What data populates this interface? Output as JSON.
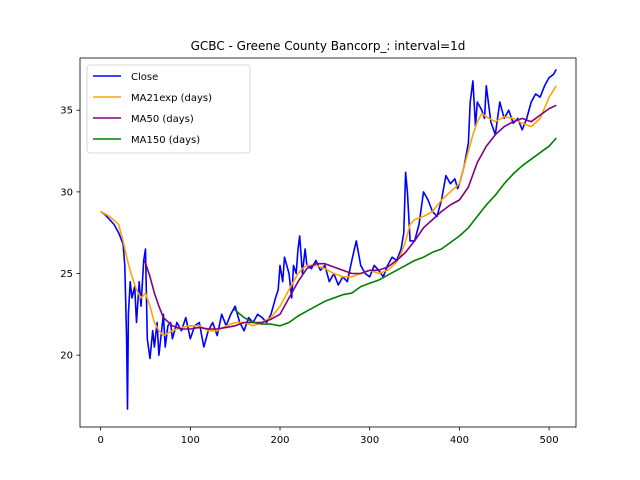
{
  "chart_data": {
    "type": "line",
    "title": "GCBC - Greene County Bancorp_: interval=1d",
    "xlabel": "",
    "ylabel": "",
    "xlim": [
      -23,
      530
    ],
    "ylim": [
      15.6,
      38.2
    ],
    "xticks": [
      0,
      100,
      200,
      300,
      400,
      500
    ],
    "yticks": [
      20,
      25,
      30,
      35
    ],
    "grid": false,
    "legend_position": "upper-left",
    "series": [
      {
        "name": "Close",
        "color": "#0000ff",
        "x": [
          0,
          5,
          10,
          15,
          20,
          25,
          27,
          29,
          30,
          31,
          33,
          35,
          38,
          40,
          43,
          45,
          48,
          50,
          52,
          55,
          58,
          60,
          63,
          65,
          68,
          70,
          72,
          75,
          78,
          80,
          85,
          90,
          95,
          100,
          105,
          110,
          115,
          120,
          125,
          130,
          135,
          140,
          145,
          150,
          155,
          160,
          165,
          170,
          175,
          180,
          185,
          190,
          195,
          198,
          200,
          203,
          205,
          210,
          213,
          215,
          218,
          220,
          222,
          225,
          228,
          230,
          235,
          240,
          245,
          250,
          255,
          260,
          265,
          270,
          275,
          280,
          285,
          290,
          295,
          300,
          305,
          310,
          315,
          320,
          325,
          330,
          335,
          338,
          340,
          342,
          345,
          350,
          355,
          360,
          365,
          370,
          375,
          380,
          385,
          390,
          395,
          398,
          400,
          405,
          410,
          412,
          415,
          418,
          420,
          425,
          428,
          430,
          435,
          440,
          445,
          450,
          455,
          460,
          465,
          470,
          475,
          480,
          485,
          490,
          495,
          500,
          505,
          508
        ],
        "y": [
          28.8,
          28.6,
          28.3,
          28.0,
          27.5,
          26.8,
          25.5,
          21.0,
          16.7,
          22.5,
          24.5,
          23.5,
          24.2,
          22.0,
          24.5,
          23.0,
          25.8,
          26.5,
          21.0,
          19.8,
          21.5,
          20.5,
          22.0,
          20.0,
          21.5,
          22.5,
          20.5,
          21.8,
          22.0,
          21.0,
          22.0,
          21.5,
          22.3,
          21.0,
          21.8,
          22.0,
          20.5,
          21.5,
          22.0,
          21.2,
          22.5,
          21.8,
          22.5,
          23.0,
          22.0,
          21.5,
          22.3,
          22.0,
          22.5,
          22.3,
          22.0,
          22.5,
          23.5,
          24.0,
          25.5,
          24.5,
          26.0,
          25.0,
          23.5,
          25.5,
          25.0,
          26.5,
          27.3,
          25.0,
          26.5,
          25.5,
          25.3,
          25.8,
          25.2,
          25.5,
          24.5,
          25.0,
          24.3,
          24.8,
          24.5,
          25.8,
          27.0,
          25.5,
          25.0,
          24.8,
          25.5,
          25.2,
          24.8,
          25.5,
          26.0,
          25.8,
          26.5,
          27.5,
          31.2,
          30.0,
          27.0,
          27.0,
          28.0,
          30.0,
          29.5,
          28.8,
          28.5,
          29.5,
          31.0,
          30.5,
          30.8,
          30.2,
          30.5,
          31.5,
          33.0,
          35.5,
          36.8,
          34.0,
          35.5,
          35.0,
          34.5,
          36.5,
          34.3,
          33.5,
          35.5,
          34.5,
          35.0,
          34.2,
          34.5,
          33.8,
          34.5,
          35.5,
          36.0,
          35.8,
          36.5,
          37.0,
          37.2,
          37.5
        ]
      },
      {
        "name": "MA21exp (days)",
        "color": "#ffa500",
        "x": [
          0,
          10,
          20,
          25,
          30,
          35,
          40,
          45,
          50,
          55,
          60,
          65,
          70,
          80,
          90,
          100,
          110,
          120,
          130,
          140,
          150,
          160,
          170,
          180,
          190,
          200,
          205,
          210,
          215,
          220,
          225,
          230,
          240,
          250,
          260,
          270,
          280,
          290,
          300,
          310,
          320,
          330,
          335,
          340,
          345,
          350,
          360,
          370,
          380,
          390,
          400,
          405,
          410,
          415,
          420,
          425,
          430,
          440,
          450,
          460,
          470,
          480,
          490,
          500,
          508
        ],
        "y": [
          28.8,
          28.5,
          28.0,
          27.0,
          25.8,
          24.8,
          24.0,
          23.5,
          23.8,
          23.0,
          22.0,
          21.5,
          21.2,
          21.5,
          21.7,
          21.8,
          21.8,
          21.5,
          21.5,
          21.8,
          22.0,
          22.0,
          21.8,
          22.0,
          22.3,
          23.0,
          23.5,
          24.0,
          24.5,
          25.0,
          25.3,
          25.5,
          25.5,
          25.3,
          25.0,
          24.8,
          24.8,
          25.0,
          25.2,
          25.0,
          25.2,
          25.7,
          26.2,
          27.0,
          28.0,
          28.3,
          28.5,
          28.8,
          29.5,
          30.0,
          30.5,
          31.5,
          32.5,
          33.5,
          34.3,
          34.8,
          34.6,
          34.3,
          34.6,
          34.5,
          34.2,
          34.0,
          34.5,
          35.8,
          36.5
        ]
      },
      {
        "name": "MA50 (days)",
        "color": "#800080",
        "x": [
          49,
          55,
          60,
          65,
          70,
          80,
          90,
          100,
          110,
          120,
          130,
          140,
          150,
          160,
          170,
          180,
          190,
          200,
          210,
          220,
          230,
          240,
          250,
          260,
          270,
          280,
          290,
          300,
          310,
          320,
          330,
          340,
          350,
          360,
          370,
          380,
          390,
          400,
          410,
          420,
          430,
          440,
          450,
          460,
          470,
          480,
          490,
          500,
          508
        ],
        "y": [
          25.8,
          24.8,
          23.8,
          23.0,
          22.3,
          21.8,
          21.6,
          21.6,
          21.7,
          21.6,
          21.6,
          21.7,
          21.8,
          22.0,
          22.0,
          22.0,
          22.2,
          22.5,
          23.5,
          24.5,
          25.3,
          25.6,
          25.6,
          25.4,
          25.2,
          25.0,
          25.0,
          25.2,
          25.2,
          25.4,
          25.8,
          26.3,
          27.0,
          27.8,
          28.3,
          28.8,
          29.2,
          29.5,
          30.3,
          31.8,
          32.8,
          33.5,
          34.0,
          34.3,
          34.5,
          34.3,
          34.7,
          35.1,
          35.3
        ]
      },
      {
        "name": "MA150 (days)",
        "color": "#008000",
        "x": [
          149,
          160,
          170,
          180,
          190,
          200,
          210,
          220,
          230,
          240,
          250,
          260,
          270,
          280,
          290,
          300,
          310,
          320,
          330,
          340,
          350,
          360,
          370,
          380,
          390,
          400,
          410,
          420,
          430,
          440,
          450,
          460,
          470,
          480,
          490,
          500,
          508
        ],
        "y": [
          22.8,
          22.3,
          22.0,
          21.9,
          21.9,
          21.8,
          22.0,
          22.4,
          22.7,
          23.0,
          23.3,
          23.5,
          23.7,
          23.8,
          24.2,
          24.4,
          24.6,
          24.9,
          25.2,
          25.5,
          25.8,
          26.0,
          26.3,
          26.5,
          26.9,
          27.3,
          27.8,
          28.5,
          29.2,
          29.8,
          30.5,
          31.1,
          31.6,
          32.0,
          32.4,
          32.8,
          33.3
        ]
      }
    ]
  }
}
